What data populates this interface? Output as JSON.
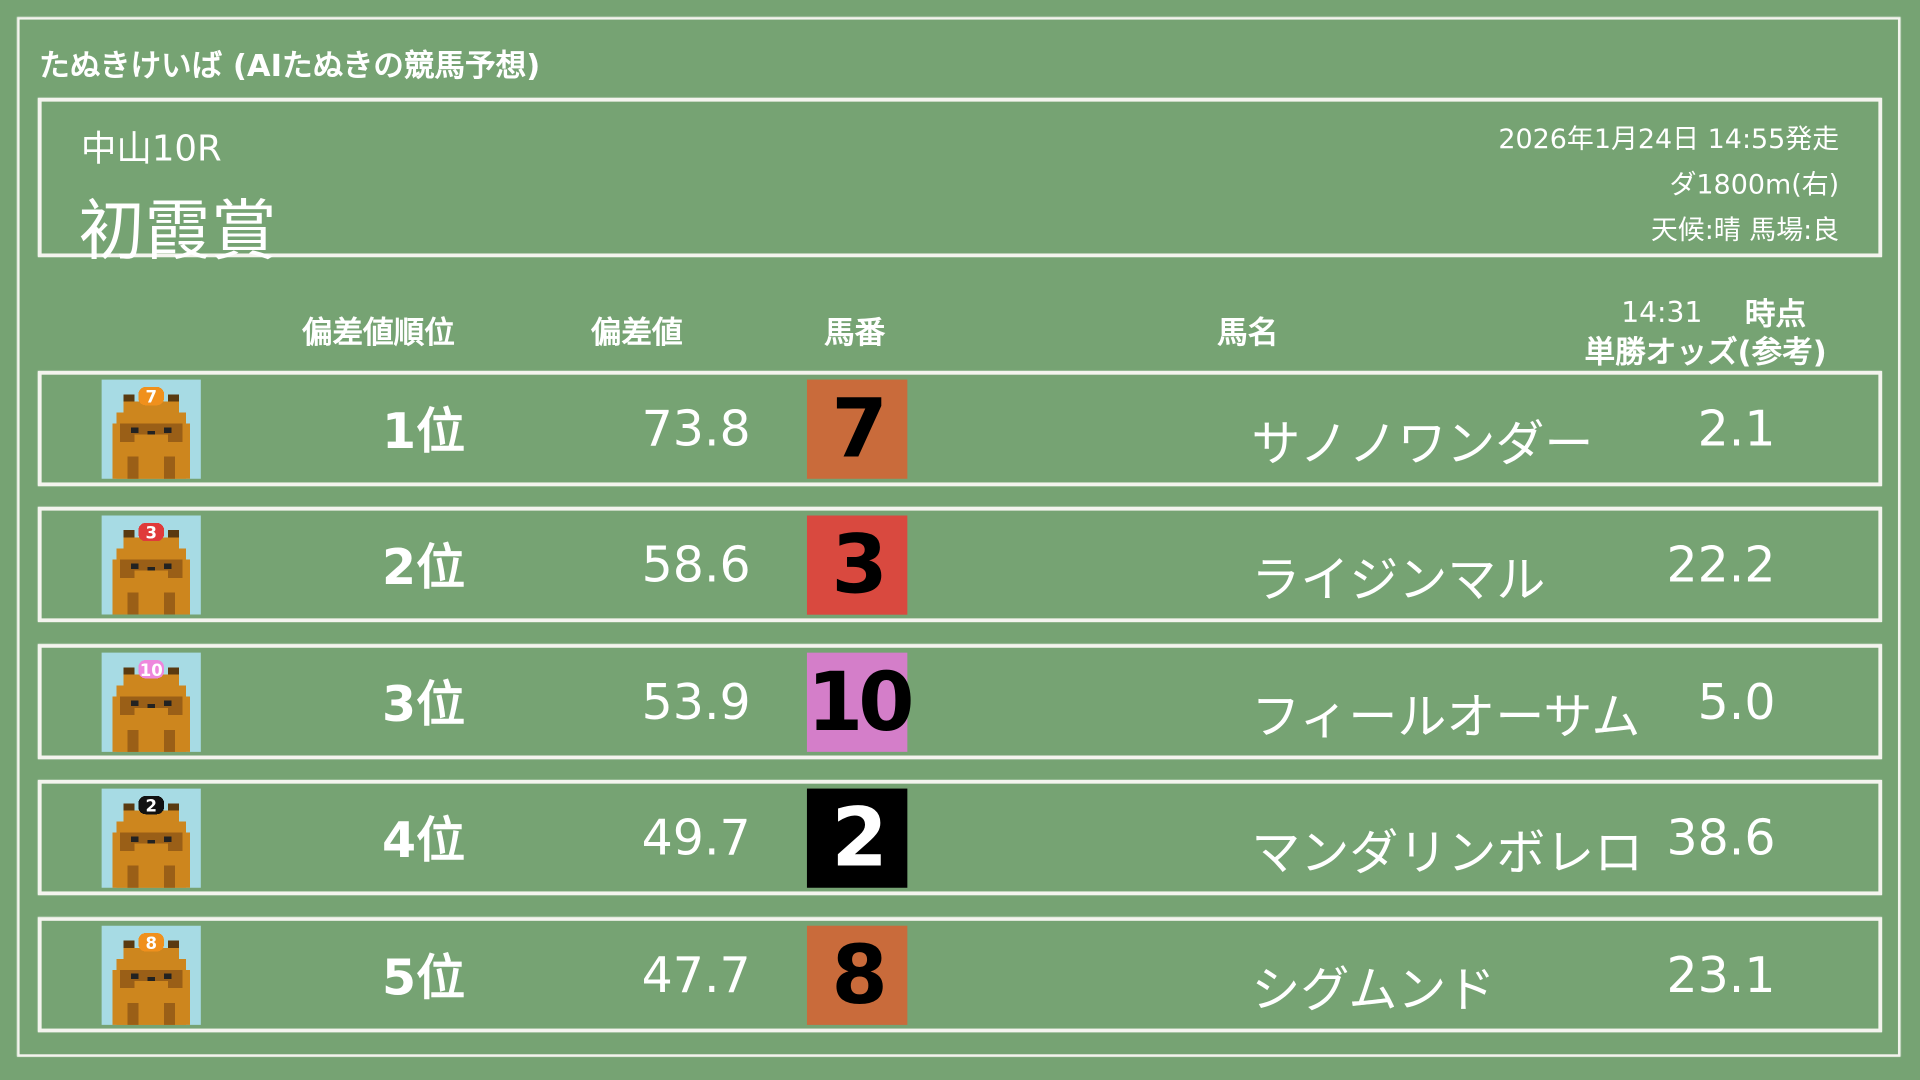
{
  "site_title": "たぬきけいば (AIたぬきの競馬予想)",
  "race": {
    "venue_round": "中山10R",
    "name": "初霞賞",
    "start": "2026年1月24日 14:55発走",
    "course": "ダ1800m(右)",
    "conditions": "天候:晴 馬場:良"
  },
  "headers": {
    "rank": "偏差値順位",
    "deviation": "偏差値",
    "number": "馬番",
    "horse_name": "馬名",
    "odds_time": "14:31",
    "odds_time_suffix": "時点",
    "odds": "単勝オッズ(参考)"
  },
  "colors": {
    "background": "#76a373",
    "icon_bg": "#a7dbe4"
  },
  "rows": [
    {
      "rank": "1位",
      "deviation": "73.8",
      "number": "7",
      "name": "サノノワンダー",
      "odds": "2.1",
      "box_color": "#c96b3b",
      "text_color": "#000000",
      "cap_color": "#f0901c",
      "icon": "tanuki-icon"
    },
    {
      "rank": "2位",
      "deviation": "58.6",
      "number": "3",
      "name": "ライジンマル",
      "odds": "22.2",
      "box_color": "#d9493f",
      "text_color": "#000000",
      "cap_color": "#e03a3a",
      "icon": "tanuki-icon"
    },
    {
      "rank": "3位",
      "deviation": "53.9",
      "number": "10",
      "name": "フィールオーサム",
      "odds": "5.0",
      "box_color": "#d47ec9",
      "text_color": "#000000",
      "cap_color": "#ee88dd",
      "icon": "tanuki-icon"
    },
    {
      "rank": "4位",
      "deviation": "49.7",
      "number": "2",
      "name": "マンダリンボレロ",
      "odds": "38.6",
      "box_color": "#000000",
      "text_color": "#ffffff",
      "cap_color": "#111111",
      "icon": "tanuki-icon"
    },
    {
      "rank": "5位",
      "deviation": "47.7",
      "number": "8",
      "name": "シグムンド",
      "odds": "23.1",
      "box_color": "#c96b3b",
      "text_color": "#000000",
      "cap_color": "#f0901c",
      "icon": "tanuki-icon"
    }
  ]
}
